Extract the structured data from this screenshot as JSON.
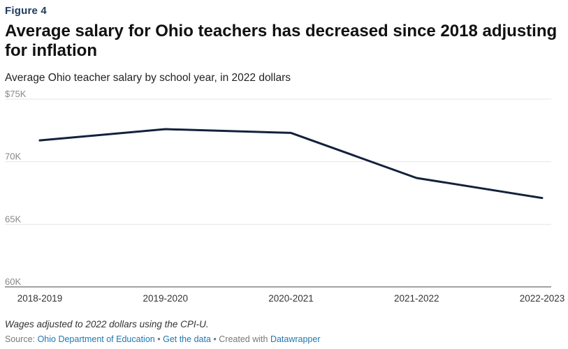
{
  "figure_label": "Figure 4",
  "title": "Average salary for Ohio teachers has decreased since 2018 adjusting for inflation",
  "subtitle": "Average Ohio teacher salary by school year, in 2022 dollars",
  "chart_data": {
    "type": "line",
    "title": "Average salary for Ohio teachers has decreased since 2018 adjusting for inflation",
    "subtitle": "Average Ohio teacher salary by school year, in 2022 dollars",
    "xlabel": "",
    "ylabel": "",
    "categories": [
      "2018-2019",
      "2019-2020",
      "2020-2021",
      "2021-2022",
      "2022-2023"
    ],
    "series": [
      {
        "values": [
          71700,
          72600,
          72300,
          68700,
          67100
        ]
      }
    ],
    "ylim": [
      60000,
      75000
    ],
    "y_ticks": [
      {
        "value": 75000,
        "label": "$75K"
      },
      {
        "value": 70000,
        "label": "70K"
      },
      {
        "value": 65000,
        "label": "65K"
      },
      {
        "value": 60000,
        "label": "60K"
      }
    ],
    "grid": true,
    "line_color": "#14213d",
    "grid_color": "#e6e6e6"
  },
  "notes": "Wages adjusted to 2022 dollars using the CPI-U.",
  "source": {
    "prefix": "Source:",
    "source_link": "Ohio Department of Education",
    "separator1": "•",
    "data_link": "Get the data",
    "separator2": "•",
    "created_text": "Created with",
    "tool_link": "Datawrapper"
  }
}
